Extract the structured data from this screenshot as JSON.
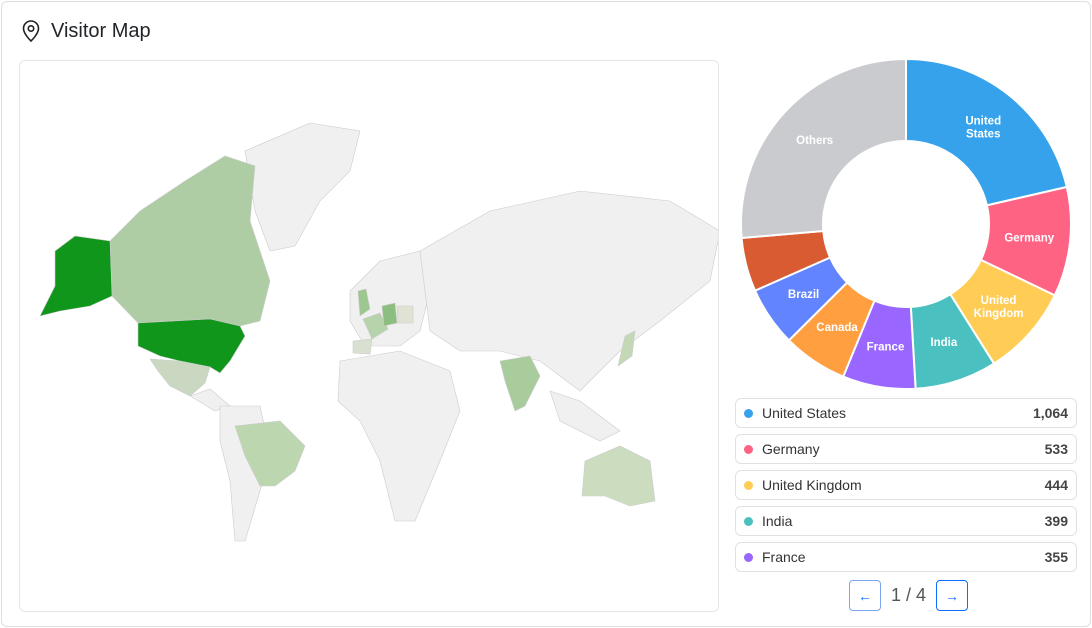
{
  "header": {
    "title": "Visitor Map",
    "icon": "map-pin-icon"
  },
  "map": {
    "highlighted": [
      {
        "country": "United States",
        "color": "#10961a"
      },
      {
        "country": "Canada",
        "color": "#aecda4"
      },
      {
        "country": "Germany",
        "color": "#8cbf7f"
      },
      {
        "country": "United Kingdom",
        "color": "#9cc78f"
      },
      {
        "country": "France",
        "color": "#b6d3ab"
      },
      {
        "country": "India",
        "color": "#a9cc9c"
      },
      {
        "country": "Brazil",
        "color": "#bcd7b0"
      },
      {
        "country": "Australia",
        "color": "#ccdcbf"
      },
      {
        "country": "Mexico",
        "color": "#cad8c2"
      }
    ],
    "default_color": "#f0f0f0"
  },
  "chart_data": {
    "type": "pie",
    "donut": true,
    "categories": [
      "United States",
      "Germany",
      "United Kingdom",
      "India",
      "France",
      "Canada",
      "Brazil",
      "",
      "Others"
    ],
    "values": [
      1064,
      533,
      444,
      399,
      355,
      315,
      290,
      262,
      1310
    ],
    "colors": [
      "#36a2eb",
      "#ff6384",
      "#ffcd56",
      "#4bc0c0",
      "#9966ff",
      "#ff9f40",
      "#6384ff",
      "#d95b32",
      "#c9cbcf"
    ],
    "labels": [
      "United States",
      "Germany",
      "United Kingdom",
      "India",
      "France",
      "Canada",
      "Brazil",
      "",
      "Others"
    ]
  },
  "legend": [
    {
      "name": "United States",
      "value": "1,064",
      "color": "#36a2eb"
    },
    {
      "name": "Germany",
      "value": "533",
      "color": "#ff6384"
    },
    {
      "name": "United Kingdom",
      "value": "444",
      "color": "#ffcd56"
    },
    {
      "name": "India",
      "value": "399",
      "color": "#4bc0c0"
    },
    {
      "name": "France",
      "value": "355",
      "color": "#9966ff"
    }
  ],
  "pager": {
    "prev": "←",
    "next": "→",
    "current": "1",
    "total": "4",
    "sep": " / "
  }
}
